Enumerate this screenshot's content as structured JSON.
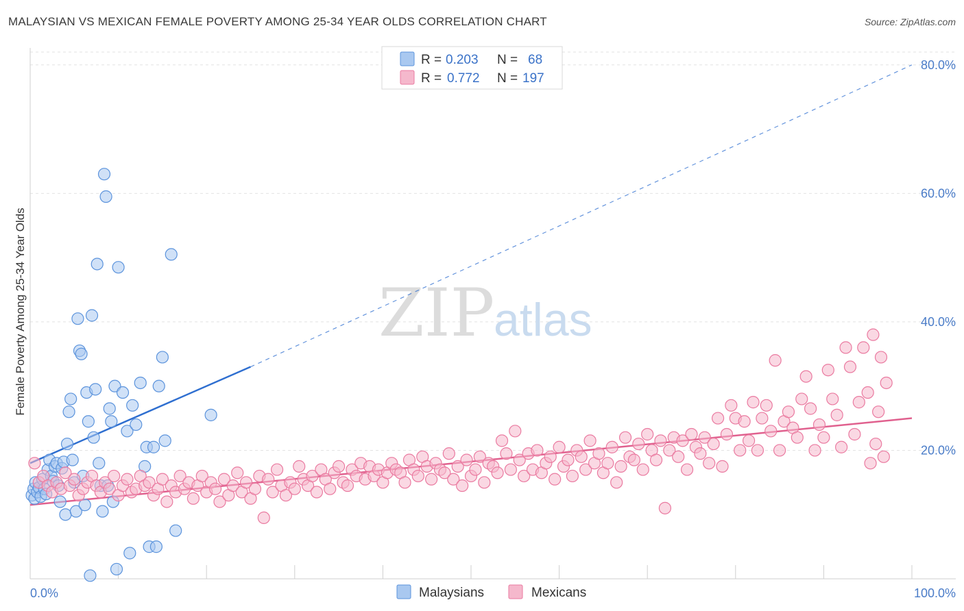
{
  "title": "MALAYSIAN VS MEXICAN FEMALE POVERTY AMONG 25-34 YEAR OLDS CORRELATION CHART",
  "source": "Source: ZipAtlas.com",
  "watermark": {
    "zip": "ZIP",
    "atlas": "atlas"
  },
  "legend": {
    "rows": [
      {
        "r_label": "R = ",
        "r_value": "0.203",
        "n_label": "N = ",
        "n_value": "68",
        "color": "#a9c8f0"
      },
      {
        "r_label": "R = ",
        "r_value": "0.772",
        "n_label": "N = ",
        "n_value": "197",
        "color": "#f5b8cc"
      }
    ]
  },
  "chart_data": {
    "type": "scatter",
    "title": "MALAYSIAN VS MEXICAN FEMALE POVERTY AMONG 25-34 YEAR OLDS CORRELATION CHART",
    "xlabel": "",
    "ylabel": "Female Poverty Among 25-34 Year Olds",
    "xlim": [
      0,
      100
    ],
    "ylim": [
      0,
      82
    ],
    "x_tick_labels": [
      "0.0%",
      "100.0%"
    ],
    "y_ticks": [
      20,
      40,
      60,
      80
    ],
    "y_tick_labels": [
      "20.0%",
      "40.0%",
      "60.0%",
      "80.0%"
    ],
    "grid": true,
    "legend_position": "bottom",
    "series": [
      {
        "name": "Malaysians",
        "color": "#5b93dc",
        "fill": "#a9c8f0",
        "trend": {
          "x": [
            0,
            25
          ],
          "y": [
            18.0,
            33.0
          ],
          "dash_extension": {
            "x": [
              25,
              100
            ],
            "y": [
              33.0,
              80.0
            ]
          },
          "color": "#2f6fd0"
        },
        "points": [
          [
            0.2,
            13.0
          ],
          [
            0.4,
            14.0
          ],
          [
            0.5,
            12.5
          ],
          [
            0.6,
            15.0
          ],
          [
            0.8,
            13.5
          ],
          [
            1.0,
            14.2
          ],
          [
            1.2,
            12.8
          ],
          [
            1.4,
            15.5
          ],
          [
            1.6,
            14.0
          ],
          [
            1.8,
            13.2
          ],
          [
            2.0,
            17.0
          ],
          [
            2.2,
            18.5
          ],
          [
            2.4,
            16.0
          ],
          [
            2.6,
            15.2
          ],
          [
            2.8,
            17.5
          ],
          [
            3.0,
            18.0
          ],
          [
            3.2,
            14.5
          ],
          [
            3.4,
            12.0
          ],
          [
            3.6,
            17.2
          ],
          [
            3.8,
            18.2
          ],
          [
            4.0,
            10.0
          ],
          [
            4.2,
            21.0
          ],
          [
            4.4,
            26.0
          ],
          [
            4.6,
            28.0
          ],
          [
            4.8,
            18.5
          ],
          [
            5.0,
            15.0
          ],
          [
            5.2,
            10.5
          ],
          [
            5.4,
            40.5
          ],
          [
            5.6,
            35.5
          ],
          [
            5.8,
            35.0
          ],
          [
            6.0,
            16.0
          ],
          [
            6.2,
            11.5
          ],
          [
            6.4,
            29.0
          ],
          [
            6.6,
            24.5
          ],
          [
            6.8,
            0.5
          ],
          [
            7.0,
            41.0
          ],
          [
            7.2,
            22.0
          ],
          [
            7.4,
            29.5
          ],
          [
            7.6,
            49.0
          ],
          [
            7.8,
            18.0
          ],
          [
            8.0,
            14.5
          ],
          [
            8.2,
            10.5
          ],
          [
            8.4,
            63.0
          ],
          [
            8.6,
            59.5
          ],
          [
            8.8,
            14.5
          ],
          [
            9.0,
            26.5
          ],
          [
            9.2,
            24.5
          ],
          [
            9.4,
            12.0
          ],
          [
            9.6,
            30.0
          ],
          [
            9.8,
            1.5
          ],
          [
            10.0,
            48.5
          ],
          [
            10.5,
            29.0
          ],
          [
            11.0,
            23.0
          ],
          [
            11.3,
            4.0
          ],
          [
            11.6,
            27.0
          ],
          [
            12.0,
            24.0
          ],
          [
            12.5,
            30.5
          ],
          [
            13.0,
            17.5
          ],
          [
            13.2,
            20.5
          ],
          [
            13.5,
            5.0
          ],
          [
            14.0,
            20.5
          ],
          [
            14.3,
            5.0
          ],
          [
            14.6,
            30.0
          ],
          [
            15.0,
            34.5
          ],
          [
            15.3,
            21.5
          ],
          [
            16.0,
            50.5
          ],
          [
            16.5,
            7.5
          ],
          [
            20.5,
            25.5
          ]
        ]
      },
      {
        "name": "Mexicans",
        "color": "#ea7aa0",
        "fill": "#f5b8cc",
        "trend": {
          "x": [
            0,
            100
          ],
          "y": [
            11.5,
            25.0
          ],
          "color": "#e0608e"
        },
        "points": [
          [
            0.5,
            18.0
          ],
          [
            1.0,
            15.0
          ],
          [
            1.5,
            16.0
          ],
          [
            2.0,
            14.5
          ],
          [
            2.5,
            13.5
          ],
          [
            3.0,
            15.0
          ],
          [
            3.5,
            14.0
          ],
          [
            4.0,
            16.5
          ],
          [
            4.5,
            14.5
          ],
          [
            5.0,
            15.5
          ],
          [
            5.5,
            13.0
          ],
          [
            6.0,
            14.0
          ],
          [
            6.5,
            15.0
          ],
          [
            7.0,
            16.0
          ],
          [
            7.5,
            14.5
          ],
          [
            8.0,
            13.5
          ],
          [
            8.5,
            15.0
          ],
          [
            9.0,
            14.0
          ],
          [
            9.5,
            16.0
          ],
          [
            10.0,
            13.0
          ],
          [
            10.5,
            14.5
          ],
          [
            11.0,
            15.5
          ],
          [
            11.5,
            13.5
          ],
          [
            12.0,
            14.0
          ],
          [
            12.5,
            16.0
          ],
          [
            13.0,
            14.5
          ],
          [
            13.5,
            15.0
          ],
          [
            14.0,
            13.0
          ],
          [
            14.5,
            14.0
          ],
          [
            15.0,
            15.5
          ],
          [
            15.5,
            12.0
          ],
          [
            16.0,
            14.5
          ],
          [
            16.5,
            13.5
          ],
          [
            17.0,
            16.0
          ],
          [
            17.5,
            14.0
          ],
          [
            18.0,
            15.0
          ],
          [
            18.5,
            12.5
          ],
          [
            19.0,
            14.5
          ],
          [
            19.5,
            16.0
          ],
          [
            20.0,
            13.5
          ],
          [
            20.5,
            15.0
          ],
          [
            21.0,
            14.0
          ],
          [
            21.5,
            12.0
          ],
          [
            22.0,
            15.5
          ],
          [
            22.5,
            13.0
          ],
          [
            23.0,
            14.5
          ],
          [
            23.5,
            16.5
          ],
          [
            24.0,
            13.5
          ],
          [
            24.5,
            15.0
          ],
          [
            25.0,
            12.5
          ],
          [
            25.5,
            14.0
          ],
          [
            26.0,
            16.0
          ],
          [
            26.5,
            9.5
          ],
          [
            27.0,
            15.5
          ],
          [
            27.5,
            13.5
          ],
          [
            28.0,
            17.0
          ],
          [
            28.5,
            14.5
          ],
          [
            29.0,
            13.0
          ],
          [
            29.5,
            15.0
          ],
          [
            30.0,
            14.0
          ],
          [
            30.5,
            17.5
          ],
          [
            31.0,
            15.5
          ],
          [
            31.5,
            14.5
          ],
          [
            32.0,
            16.0
          ],
          [
            32.5,
            13.5
          ],
          [
            33.0,
            17.0
          ],
          [
            33.5,
            15.5
          ],
          [
            34.0,
            14.0
          ],
          [
            34.5,
            16.5
          ],
          [
            35.0,
            17.5
          ],
          [
            35.5,
            15.0
          ],
          [
            36.0,
            14.5
          ],
          [
            36.5,
            17.0
          ],
          [
            37.0,
            16.0
          ],
          [
            37.5,
            18.0
          ],
          [
            38.0,
            15.5
          ],
          [
            38.5,
            17.5
          ],
          [
            39.0,
            16.0
          ],
          [
            39.5,
            17.0
          ],
          [
            40.0,
            15.0
          ],
          [
            40.5,
            16.5
          ],
          [
            41.0,
            18.0
          ],
          [
            41.5,
            17.0
          ],
          [
            42.0,
            16.5
          ],
          [
            42.5,
            15.0
          ],
          [
            43.0,
            18.5
          ],
          [
            43.5,
            17.0
          ],
          [
            44.0,
            16.0
          ],
          [
            44.5,
            19.0
          ],
          [
            45.0,
            17.5
          ],
          [
            45.5,
            15.5
          ],
          [
            46.0,
            18.0
          ],
          [
            46.5,
            17.0
          ],
          [
            47.0,
            16.5
          ],
          [
            47.5,
            19.5
          ],
          [
            48.0,
            15.5
          ],
          [
            48.5,
            17.5
          ],
          [
            49.0,
            14.5
          ],
          [
            49.5,
            18.5
          ],
          [
            50.0,
            16.0
          ],
          [
            50.5,
            17.0
          ],
          [
            51.0,
            19.0
          ],
          [
            51.5,
            15.0
          ],
          [
            52.0,
            18.0
          ],
          [
            52.5,
            17.5
          ],
          [
            53.0,
            16.5
          ],
          [
            53.5,
            21.5
          ],
          [
            54.0,
            19.5
          ],
          [
            54.5,
            17.0
          ],
          [
            55.0,
            23.0
          ],
          [
            55.5,
            18.5
          ],
          [
            56.0,
            16.0
          ],
          [
            56.5,
            19.5
          ],
          [
            57.0,
            17.0
          ],
          [
            57.5,
            20.0
          ],
          [
            58.0,
            16.5
          ],
          [
            58.5,
            18.0
          ],
          [
            59.0,
            19.0
          ],
          [
            59.5,
            15.5
          ],
          [
            60.0,
            20.5
          ],
          [
            60.5,
            17.5
          ],
          [
            61.0,
            18.5
          ],
          [
            61.5,
            16.0
          ],
          [
            62.0,
            20.0
          ],
          [
            62.5,
            19.0
          ],
          [
            63.0,
            17.0
          ],
          [
            63.5,
            21.5
          ],
          [
            64.0,
            18.0
          ],
          [
            64.5,
            19.5
          ],
          [
            65.0,
            16.5
          ],
          [
            65.5,
            18.0
          ],
          [
            66.0,
            20.5
          ],
          [
            66.5,
            15.0
          ],
          [
            67.0,
            17.5
          ],
          [
            67.5,
            22.0
          ],
          [
            68.0,
            19.0
          ],
          [
            68.5,
            18.5
          ],
          [
            69.0,
            21.0
          ],
          [
            69.5,
            17.0
          ],
          [
            70.0,
            22.5
          ],
          [
            70.5,
            20.0
          ],
          [
            71.0,
            18.5
          ],
          [
            71.5,
            21.5
          ],
          [
            72.0,
            11.0
          ],
          [
            72.5,
            20.0
          ],
          [
            73.0,
            22.0
          ],
          [
            73.5,
            19.0
          ],
          [
            74.0,
            21.5
          ],
          [
            74.5,
            17.0
          ],
          [
            75.0,
            22.5
          ],
          [
            75.5,
            20.5
          ],
          [
            76.0,
            19.5
          ],
          [
            76.5,
            22.0
          ],
          [
            77.0,
            18.0
          ],
          [
            77.5,
            21.0
          ],
          [
            78.0,
            25.0
          ],
          [
            78.5,
            17.5
          ],
          [
            79.0,
            22.5
          ],
          [
            79.5,
            27.0
          ],
          [
            80.0,
            25.0
          ],
          [
            80.5,
            20.0
          ],
          [
            81.0,
            24.5
          ],
          [
            81.5,
            21.5
          ],
          [
            82.0,
            27.5
          ],
          [
            82.5,
            20.0
          ],
          [
            83.0,
            25.0
          ],
          [
            83.5,
            27.0
          ],
          [
            84.0,
            23.0
          ],
          [
            84.5,
            34.0
          ],
          [
            85.0,
            20.0
          ],
          [
            85.5,
            24.5
          ],
          [
            86.0,
            26.0
          ],
          [
            86.5,
            23.5
          ],
          [
            87.0,
            22.0
          ],
          [
            87.5,
            28.0
          ],
          [
            88.0,
            31.5
          ],
          [
            88.5,
            26.5
          ],
          [
            89.0,
            20.0
          ],
          [
            89.5,
            24.0
          ],
          [
            90.0,
            22.0
          ],
          [
            90.5,
            32.5
          ],
          [
            91.0,
            28.0
          ],
          [
            91.5,
            25.5
          ],
          [
            92.0,
            20.5
          ],
          [
            92.5,
            36.0
          ],
          [
            93.0,
            33.0
          ],
          [
            93.5,
            22.5
          ],
          [
            94.0,
            27.5
          ],
          [
            94.5,
            36.0
          ],
          [
            95.0,
            29.0
          ],
          [
            95.3,
            18.0
          ],
          [
            95.6,
            38.0
          ],
          [
            95.9,
            21.0
          ],
          [
            96.2,
            26.0
          ],
          [
            96.5,
            34.5
          ],
          [
            96.8,
            19.0
          ],
          [
            97.1,
            30.5
          ]
        ]
      }
    ]
  },
  "bottom_legend": [
    {
      "label": "Malaysians",
      "color": "#a9c8f0"
    },
    {
      "label": "Mexicans",
      "color": "#f5b8cc"
    }
  ]
}
